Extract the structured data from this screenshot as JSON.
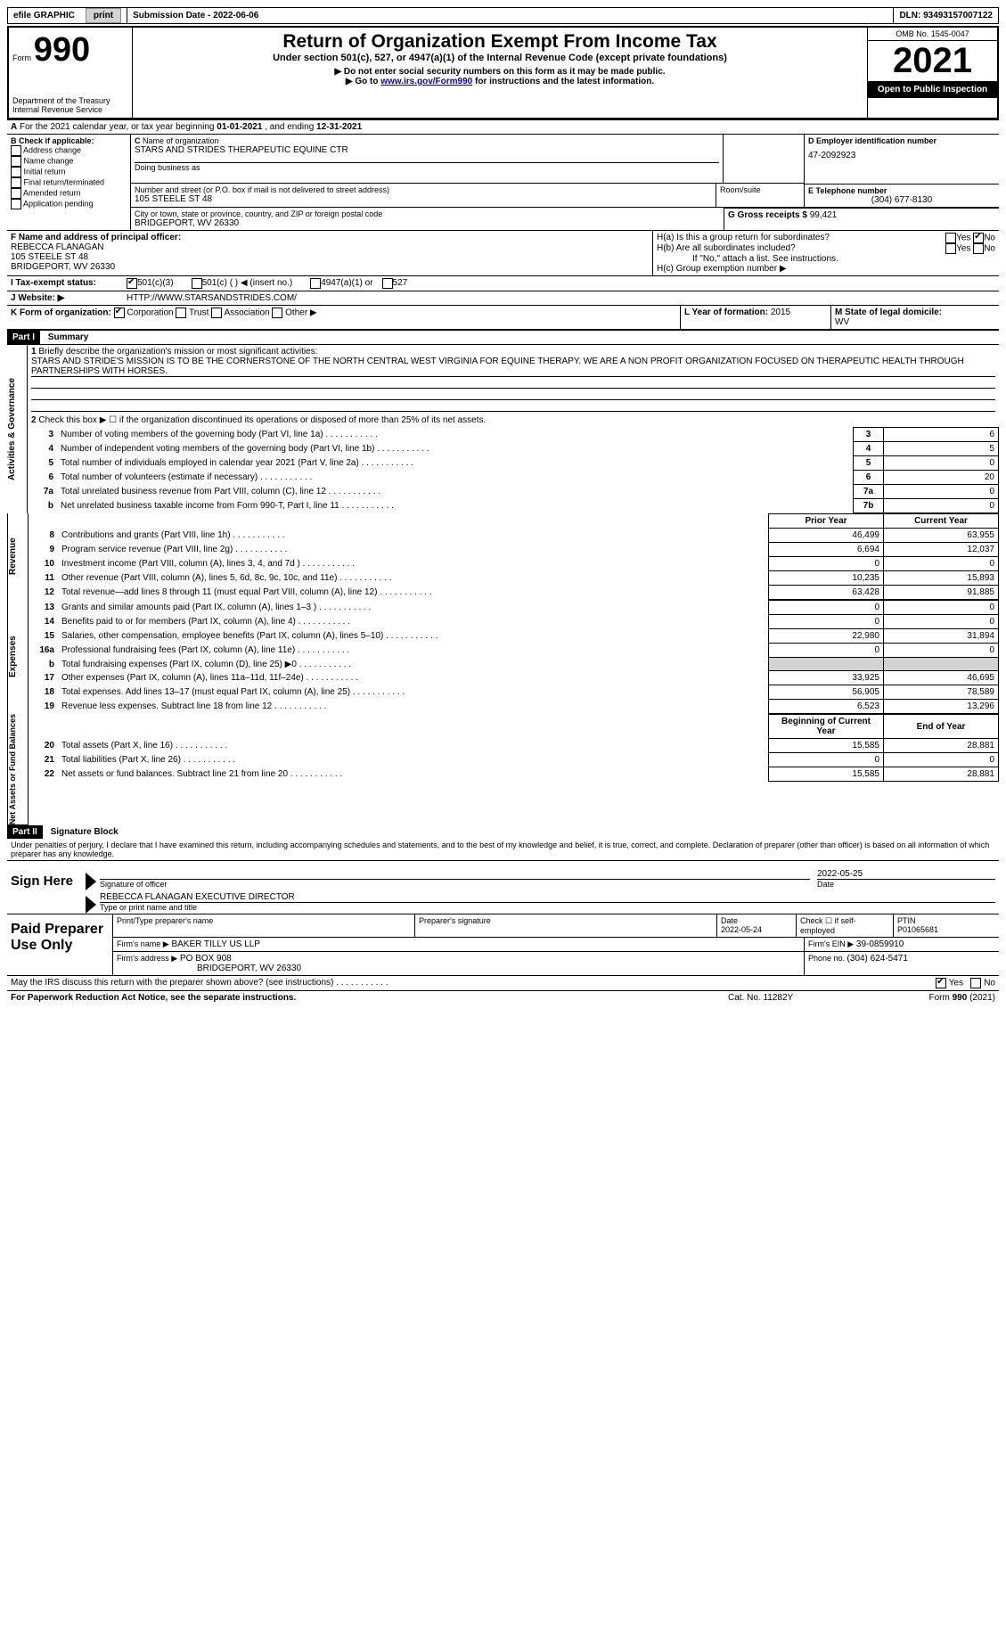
{
  "topbar": {
    "efile": "efile GRAPHIC",
    "print_btn": "print",
    "sub_date_label": "Submission Date - ",
    "sub_date": "2022-06-06",
    "dln_label": "DLN: ",
    "dln": "93493157007122"
  },
  "header": {
    "form_label": "Form",
    "form_num": "990",
    "dept": "Department of the Treasury",
    "irs": "Internal Revenue Service",
    "title": "Return of Organization Exempt From Income Tax",
    "subtitle": "Under section 501(c), 527, or 4947(a)(1) of the Internal Revenue Code (except private foundations)",
    "note1": "▶ Do not enter social security numbers on this form as it may be made public.",
    "note2_pre": "▶ Go to ",
    "note2_link": "www.irs.gov/Form990",
    "note2_post": " for instructions and the latest information.",
    "omb": "OMB No. 1545-0047",
    "year": "2021",
    "open": "Open to Public Inspection"
  },
  "A": {
    "text_pre": "For the 2021 calendar year, or tax year beginning ",
    "begin": "01-01-2021",
    "mid": "   , and ending ",
    "end": "12-31-2021"
  },
  "B": {
    "label": "B Check if applicable:",
    "opts": [
      "Address change",
      "Name change",
      "Initial return",
      "Final return/terminated",
      "Amended return",
      "Application pending"
    ]
  },
  "C": {
    "name_label": "Name of organization",
    "name": "STARS AND STRIDES THERAPEUTIC EQUINE CTR",
    "dba_label": "Doing business as",
    "addr_label": "Number and street (or P.O. box if mail is not delivered to street address)",
    "room_label": "Room/suite",
    "addr": "105 STEELE ST 48",
    "city_label": "City or town, state or province, country, and ZIP or foreign postal code",
    "city": "BRIDGEPORT, WV  26330"
  },
  "D": {
    "label": "D Employer identification number",
    "val": "47-2092923"
  },
  "E": {
    "label": "E Telephone number",
    "val": "(304) 677-8130"
  },
  "G": {
    "label": "G Gross receipts $ ",
    "val": "99,421"
  },
  "F": {
    "label": "F  Name and address of principal officer:",
    "name": "REBECCA FLANAGAN",
    "addr1": "105 STEELE ST 48",
    "addr2": "BRIDGEPORT, WV  26330"
  },
  "H": {
    "a": "H(a)  Is this a group return for subordinates?",
    "b": "H(b)  Are all subordinates included?",
    "b_note": "If \"No,\" attach a list. See instructions.",
    "c": "H(c)  Group exemption number ▶",
    "yes": "Yes",
    "no": "No"
  },
  "I": {
    "label": "I  Tax-exempt status:",
    "o1": "501(c)(3)",
    "o2": "501(c) (  ) ◀ (insert no.)",
    "o3": "4947(a)(1) or",
    "o4": "527"
  },
  "J": {
    "label": "J  Website: ▶",
    "val": "HTTP://WWW.STARSANDSTRIDES.COM/"
  },
  "K": {
    "label": "K Form of organization:",
    "o1": "Corporation",
    "o2": "Trust",
    "o3": "Association",
    "o4": "Other ▶"
  },
  "L": {
    "label": "L Year of formation: ",
    "val": "2015"
  },
  "M": {
    "label": "M State of legal domicile:",
    "val": "WV"
  },
  "part1": {
    "label": "Part I",
    "title": "Summary",
    "l1_label": "Briefly describe the organization's mission or most significant activities:",
    "l1_text": "STARS AND STRIDE'S MISSION IS TO BE THE CORNERSTONE OF THE NORTH CENTRAL WEST VIRGINIA FOR EQUINE THERAPY. WE ARE A NON PROFIT ORGANIZATION FOCUSED ON THERAPEUTIC HEALTH THROUGH PARTNERSHIPS WITH HORSES.",
    "l2": "Check this box ▶ ☐  if the organization discontinued its operations or disposed of more than 25% of its net assets.",
    "rows_a": [
      {
        "n": "3",
        "t": "Number of voting members of the governing body (Part VI, line 1a)",
        "b": "3",
        "v": "6"
      },
      {
        "n": "4",
        "t": "Number of independent voting members of the governing body (Part VI, line 1b)",
        "b": "4",
        "v": "5"
      },
      {
        "n": "5",
        "t": "Total number of individuals employed in calendar year 2021 (Part V, line 2a)",
        "b": "5",
        "v": "0"
      },
      {
        "n": "6",
        "t": "Total number of volunteers (estimate if necessary)",
        "b": "6",
        "v": "20"
      },
      {
        "n": "7a",
        "t": "Total unrelated business revenue from Part VIII, column (C), line 12",
        "b": "7a",
        "v": "0"
      },
      {
        "n": "b",
        "t": "Net unrelated business taxable income from Form 990-T, Part I, line 11",
        "b": "7b",
        "v": "0"
      }
    ],
    "prior": "Prior Year",
    "current": "Current Year",
    "rows_b": [
      {
        "n": "8",
        "t": "Contributions and grants (Part VIII, line 1h)",
        "p": "46,499",
        "c": "63,955"
      },
      {
        "n": "9",
        "t": "Program service revenue (Part VIII, line 2g)",
        "p": "6,694",
        "c": "12,037"
      },
      {
        "n": "10",
        "t": "Investment income (Part VIII, column (A), lines 3, 4, and 7d )",
        "p": "0",
        "c": "0"
      },
      {
        "n": "11",
        "t": "Other revenue (Part VIII, column (A), lines 5, 6d, 8c, 9c, 10c, and 11e)",
        "p": "10,235",
        "c": "15,893"
      },
      {
        "n": "12",
        "t": "Total revenue—add lines 8 through 11 (must equal Part VIII, column (A), line 12)",
        "p": "63,428",
        "c": "91,885"
      }
    ],
    "rows_c": [
      {
        "n": "13",
        "t": "Grants and similar amounts paid (Part IX, column (A), lines 1–3 )",
        "p": "0",
        "c": "0"
      },
      {
        "n": "14",
        "t": "Benefits paid to or for members (Part IX, column (A), line 4)",
        "p": "0",
        "c": "0"
      },
      {
        "n": "15",
        "t": "Salaries, other compensation, employee benefits (Part IX, column (A), lines 5–10)",
        "p": "22,980",
        "c": "31,894"
      },
      {
        "n": "16a",
        "t": "Professional fundraising fees (Part IX, column (A), line 11e)",
        "p": "0",
        "c": "0"
      },
      {
        "n": "b",
        "t": "Total fundraising expenses (Part IX, column (D), line 25) ▶0",
        "p": "",
        "c": "",
        "shade": true
      },
      {
        "n": "17",
        "t": "Other expenses (Part IX, column (A), lines 11a–11d, 11f–24e)",
        "p": "33,925",
        "c": "46,695"
      },
      {
        "n": "18",
        "t": "Total expenses. Add lines 13–17 (must equal Part IX, column (A), line 25)",
        "p": "56,905",
        "c": "78,589"
      },
      {
        "n": "19",
        "t": "Revenue less expenses. Subtract line 18 from line 12",
        "p": "6,523",
        "c": "13,296"
      }
    ],
    "beg": "Beginning of Current Year",
    "end": "End of Year",
    "rows_d": [
      {
        "n": "20",
        "t": "Total assets (Part X, line 16)",
        "p": "15,585",
        "c": "28,881"
      },
      {
        "n": "21",
        "t": "Total liabilities (Part X, line 26)",
        "p": "0",
        "c": "0"
      },
      {
        "n": "22",
        "t": "Net assets or fund balances. Subtract line 21 from line 20",
        "p": "15,585",
        "c": "28,881"
      }
    ],
    "side_a": "Activities & Governance",
    "side_b": "Revenue",
    "side_c": "Expenses",
    "side_d": "Net Assets or Fund Balances"
  },
  "part2": {
    "label": "Part II",
    "title": "Signature Block",
    "decl": "Under penalties of perjury, I declare that I have examined this return, including accompanying schedules and statements, and to the best of my knowledge and belief, it is true, correct, and complete. Declaration of preparer (other than officer) is based on all information of which preparer has any knowledge.",
    "sign_here": "Sign Here",
    "sig_officer": "Signature of officer",
    "sig_date": "Date",
    "sig_date_val": "2022-05-25",
    "name_title": "REBECCA FLANAGAN  EXECUTIVE DIRECTOR",
    "name_label": "Type or print name and title",
    "paid": "Paid Preparer Use Only",
    "pp_name_label": "Print/Type preparer's name",
    "pp_sig_label": "Preparer's signature",
    "pp_date_label": "Date",
    "pp_date": "2022-05-24",
    "pp_check": "Check ☐ if self-employed",
    "ptin_label": "PTIN",
    "ptin": "P01065681",
    "firm_name_label": "Firm's name    ▶",
    "firm_name": "BAKER TILLY US LLP",
    "firm_ein_label": "Firm's EIN ▶",
    "firm_ein": "39-0859910",
    "firm_addr_label": "Firm's address ▶",
    "firm_addr1": "PO BOX 908",
    "firm_addr2": "BRIDGEPORT, WV  26330",
    "phone_label": "Phone no. ",
    "phone": "(304) 624-5471",
    "discuss": "May the IRS discuss this return with the preparer shown above? (see instructions)",
    "yes": "Yes",
    "no": "No"
  },
  "footer": {
    "left": "For Paperwork Reduction Act Notice, see the separate instructions.",
    "mid": "Cat. No. 11282Y",
    "right": "Form 990 (2021)"
  }
}
